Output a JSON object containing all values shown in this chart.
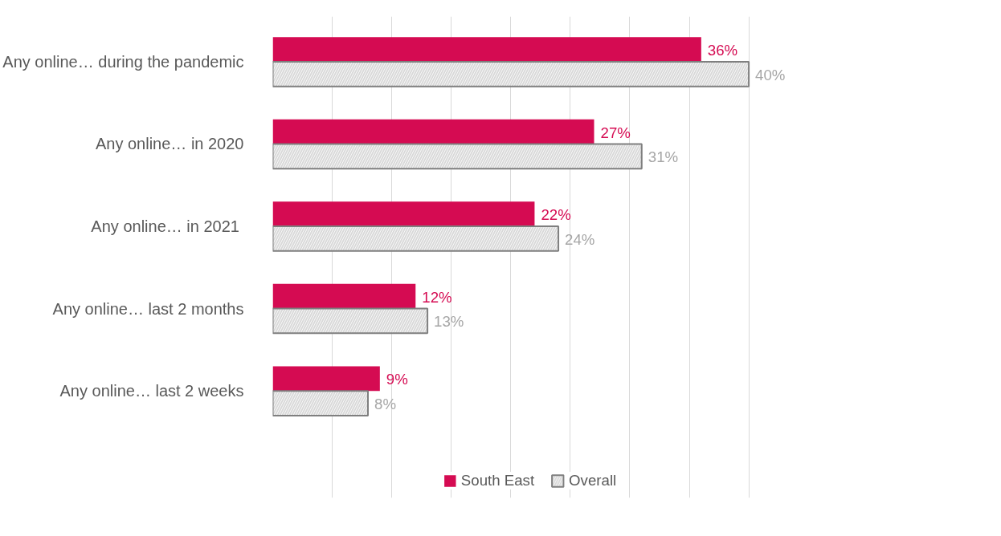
{
  "chart_data": {
    "type": "bar",
    "orientation": "horizontal",
    "categories": [
      "Any online… during the pandemic",
      "Any online… in 2020",
      "Any online…  in 2021",
      "Any online… last 2 months",
      "Any online… last 2 weeks"
    ],
    "series": [
      {
        "name": "South East",
        "color": "#d50b52",
        "values": [
          36,
          27,
          22,
          12,
          9
        ],
        "value_labels": [
          "36%",
          "27%",
          "22%",
          "12%",
          "9%"
        ]
      },
      {
        "name": "Overall",
        "color": "#d9d9d9",
        "values": [
          40,
          31,
          24,
          13,
          8
        ],
        "value_labels": [
          "40%",
          "31%",
          "24%",
          "13%",
          "8%"
        ]
      }
    ],
    "tick_labels": "y",
    "grid": "x",
    "legend": "bottom"
  }
}
